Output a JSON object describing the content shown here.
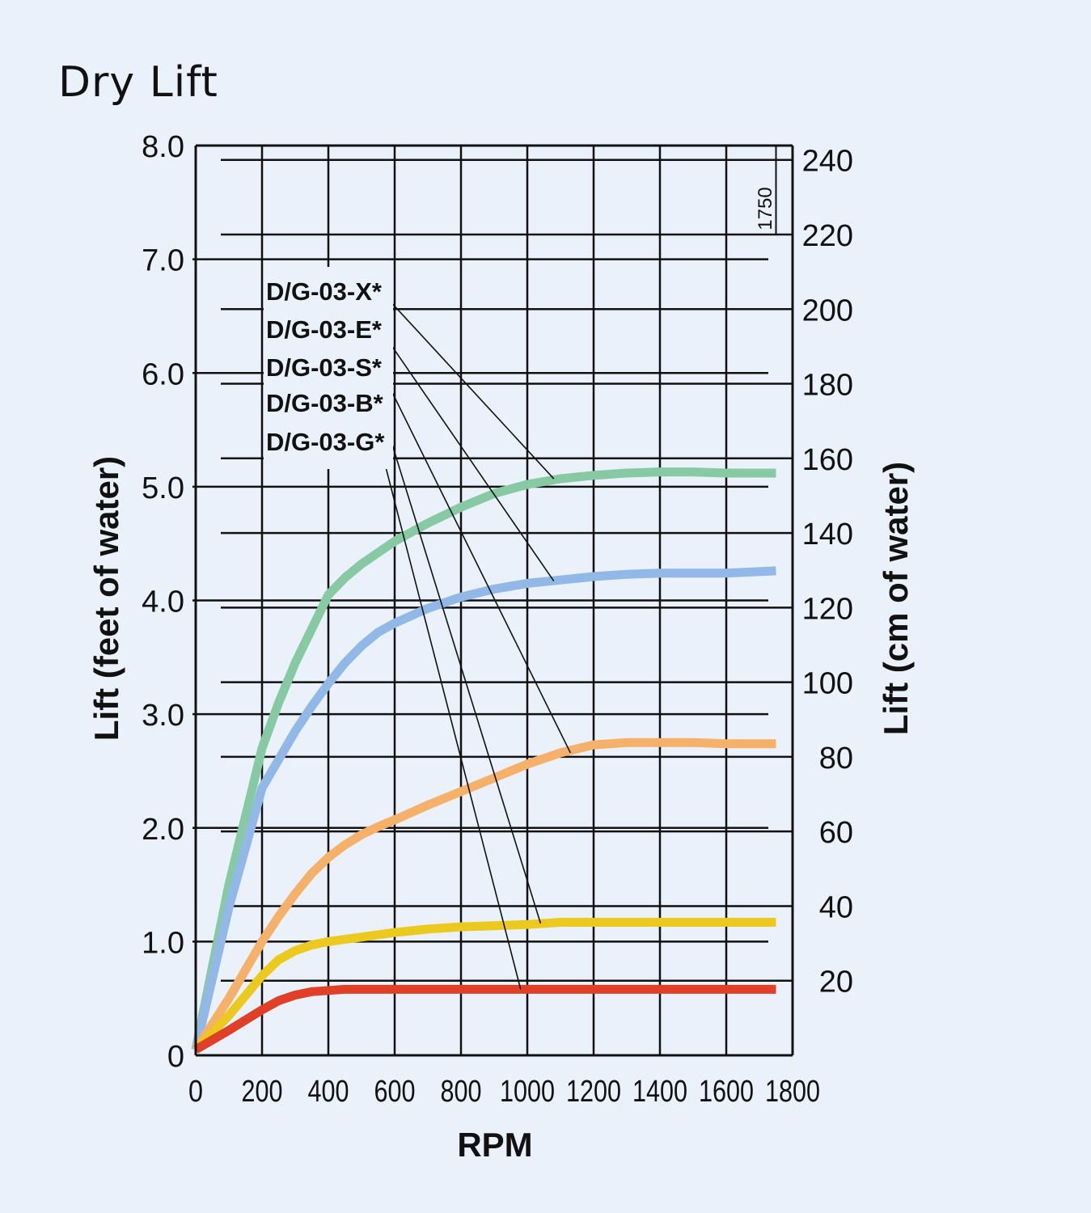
{
  "chart_data": {
    "type": "line",
    "title": "Dry Lift",
    "xlabel": "RPM",
    "ylabel": "Lift (feet of water)",
    "y2label": "Lift (cm of water)",
    "xlim": [
      0,
      1800
    ],
    "ylim": [
      0,
      8.0
    ],
    "y2lim": [
      0,
      243.84
    ],
    "x_ticks": [
      0,
      200,
      400,
      600,
      800,
      1000,
      1200,
      1400,
      1600,
      1800
    ],
    "x_tick_labels": [
      "0",
      "200",
      "400",
      "600",
      "800",
      "1000",
      "1200",
      "1400",
      "1600",
      "1800"
    ],
    "y_ticks": [
      0,
      1.0,
      2.0,
      3.0,
      4.0,
      5.0,
      6.0,
      7.0,
      8.0
    ],
    "y_tick_labels": [
      "0",
      "1.0",
      "2.0",
      "3.0",
      "4.0",
      "5.0",
      "6.0",
      "7.0",
      "8.0"
    ],
    "y2_ticks": [
      20,
      40,
      60,
      80,
      100,
      120,
      140,
      160,
      180,
      200,
      220,
      240
    ],
    "y2_tick_labels": [
      "20",
      "40",
      "60",
      "80",
      "100",
      "120",
      "140",
      "160",
      "180",
      "200",
      "220",
      "240"
    ],
    "grid": true,
    "marker_label": "1750",
    "marker_x": 1750,
    "legend_position": "top-left",
    "series": [
      {
        "name": "D/G-03-X*",
        "color": "#86c9a2",
        "x": [
          0,
          100,
          200,
          250,
          300,
          350,
          400,
          450,
          500,
          550,
          600,
          700,
          800,
          900,
          1000,
          1100,
          1200,
          1300,
          1400,
          1500,
          1600,
          1750
        ],
        "y": [
          0.05,
          1.5,
          2.7,
          3.1,
          3.45,
          3.75,
          4.05,
          4.2,
          4.32,
          4.42,
          4.52,
          4.68,
          4.82,
          4.94,
          5.02,
          5.07,
          5.1,
          5.12,
          5.13,
          5.13,
          5.12,
          5.12
        ]
      },
      {
        "name": "D/G-03-E*",
        "color": "#91b8e6",
        "x": [
          0,
          100,
          200,
          250,
          300,
          350,
          400,
          450,
          500,
          550,
          600,
          700,
          800,
          900,
          1000,
          1100,
          1200,
          1300,
          1400,
          1500,
          1600,
          1750
        ],
        "y": [
          0.05,
          1.3,
          2.35,
          2.6,
          2.85,
          3.07,
          3.27,
          3.45,
          3.6,
          3.72,
          3.8,
          3.93,
          4.03,
          4.1,
          4.15,
          4.18,
          4.21,
          4.23,
          4.24,
          4.24,
          4.24,
          4.26
        ]
      },
      {
        "name": "D/G-03-S*",
        "color": "#f5b06a",
        "x": [
          0,
          100,
          200,
          250,
          300,
          350,
          400,
          450,
          500,
          550,
          600,
          700,
          800,
          900,
          1000,
          1100,
          1200,
          1300,
          1400,
          1500,
          1600,
          1750
        ],
        "y": [
          0.05,
          0.5,
          1.0,
          1.22,
          1.42,
          1.6,
          1.74,
          1.85,
          1.94,
          2.01,
          2.07,
          2.2,
          2.32,
          2.44,
          2.56,
          2.66,
          2.73,
          2.75,
          2.75,
          2.75,
          2.74,
          2.74
        ]
      },
      {
        "name": "D/G-03-B*",
        "color": "#ecc91e",
        "x": [
          0,
          100,
          200,
          250,
          300,
          350,
          400,
          450,
          500,
          550,
          600,
          700,
          800,
          900,
          1000,
          1100,
          1200,
          1300,
          1400,
          1500,
          1600,
          1750
        ],
        "y": [
          0.05,
          0.35,
          0.7,
          0.84,
          0.92,
          0.97,
          1.0,
          1.02,
          1.04,
          1.06,
          1.08,
          1.11,
          1.13,
          1.14,
          1.15,
          1.17,
          1.17,
          1.17,
          1.17,
          1.17,
          1.17,
          1.17
        ]
      },
      {
        "name": "D/G-03-G*",
        "color": "#e14028",
        "x": [
          0,
          100,
          200,
          250,
          300,
          350,
          400,
          450,
          500,
          550,
          600,
          700,
          800,
          900,
          1000,
          1100,
          1200,
          1300,
          1400,
          1500,
          1600,
          1750
        ],
        "y": [
          0.05,
          0.22,
          0.4,
          0.48,
          0.53,
          0.56,
          0.57,
          0.58,
          0.58,
          0.58,
          0.58,
          0.58,
          0.58,
          0.58,
          0.58,
          0.58,
          0.58,
          0.58,
          0.58,
          0.58,
          0.58,
          0.58
        ]
      }
    ],
    "legend_pointers": [
      {
        "name": "D/G-03-X*",
        "x": 1080,
        "y": 5.07
      },
      {
        "name": "D/G-03-E*",
        "x": 1080,
        "y": 4.17
      },
      {
        "name": "D/G-03-S*",
        "x": 1130,
        "y": 2.66
      },
      {
        "name": "D/G-03-B*",
        "x": 1040,
        "y": 1.16
      },
      {
        "name": "D/G-03-G*",
        "x": 980,
        "y": 0.58
      }
    ]
  }
}
